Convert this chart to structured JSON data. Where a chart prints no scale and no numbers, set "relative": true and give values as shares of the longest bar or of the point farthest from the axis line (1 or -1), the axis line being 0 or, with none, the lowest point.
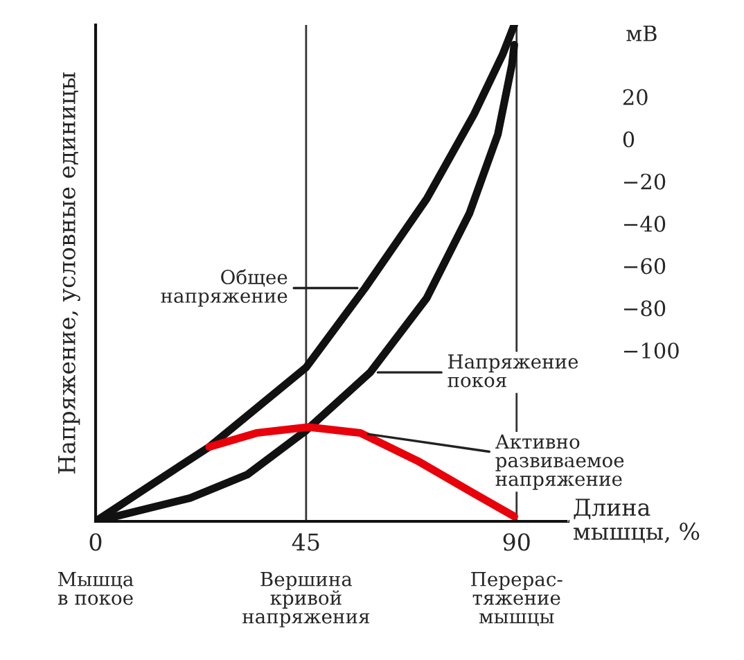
{
  "chart_data": {
    "type": "line",
    "relative": true,
    "xlabel": "Длина\nмышцы, %",
    "ylabel": "Напряжение, условные единицы",
    "y2label": "мВ",
    "xlim": [
      0,
      101
    ],
    "xticks": [
      0,
      45,
      90
    ],
    "y2lim": [
      -181,
      54
    ],
    "y2ticks": [
      {
        "value": 20,
        "label": "20"
      },
      {
        "value": 0,
        "label": "0"
      },
      {
        "value": -20,
        "label": "−20"
      },
      {
        "value": -40,
        "label": "−40"
      },
      {
        "value": -60,
        "label": "−60"
      },
      {
        "value": -80,
        "label": "−80"
      },
      {
        "value": -100,
        "label": "−100"
      }
    ],
    "series": [
      {
        "name": "Общее\nнапряжение",
        "color": "#111111",
        "x": [
          0,
          12.1,
          24.3,
          45,
          57.6,
          70.8,
          80.9,
          87,
          89.5
        ],
        "values": [
          0,
          0.075,
          0.15,
          0.31,
          0.47,
          0.65,
          0.82,
          0.94,
          1.0
        ]
      },
      {
        "name": "Напряжение\nпокоя",
        "color": "#111111",
        "x": [
          0,
          20.2,
          32.4,
          45,
          58.7,
          70.8,
          79.9,
          86,
          89,
          89.5
        ],
        "values": [
          0,
          0.047,
          0.094,
          0.183,
          0.3,
          0.45,
          0.62,
          0.78,
          0.92,
          0.96
        ]
      },
      {
        "name": "Активно\nразвиваемое\nнапряжение",
        "color": "#e8000b",
        "x": [
          24.3,
          34.4,
          45.5,
          56.6,
          68.8,
          80.9,
          89.5
        ],
        "values": [
          0.15,
          0.178,
          0.19,
          0.178,
          0.122,
          0.056,
          0.01
        ]
      }
    ],
    "ref_lines": [
      {
        "axis": "x",
        "value": 45,
        "color": "#333333"
      },
      {
        "axis": "x",
        "value": 90,
        "color": "#333333"
      }
    ],
    "annotations": [
      "Мышца\nв покое",
      "Вершина\nкривой\nнапряжения",
      "Перерас-\nтяжение\nмышцы"
    ],
    "grid": false,
    "legend": false,
    "marker": "none",
    "line_style": "solid"
  }
}
